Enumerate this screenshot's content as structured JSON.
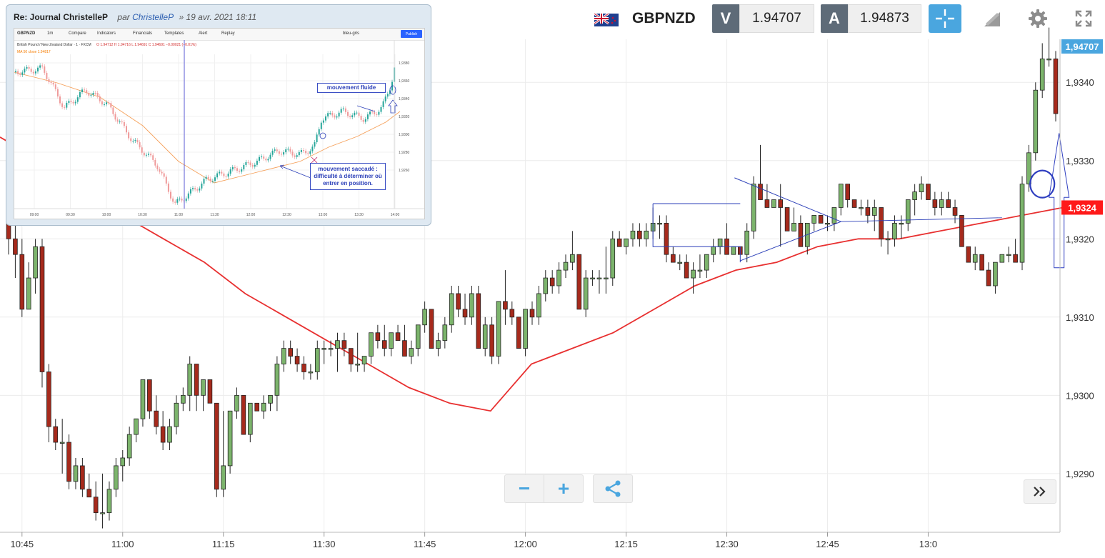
{
  "header": {
    "symbol": "GBPNZD",
    "sell_label": "V",
    "sell_price": "1.94707",
    "buy_label": "A",
    "buy_price": "1.94873"
  },
  "toolbar": {
    "icons": [
      "crosshair-icon",
      "drawing-tool-icon",
      "gear-icon",
      "fullscreen-icon"
    ]
  },
  "zoom": {
    "minus": "−",
    "plus": "+"
  },
  "colors": {
    "up": "#7cb46c",
    "down": "#a62a1c",
    "ma": "#e83030",
    "accent": "#4aa6df",
    "annotation": "#2b3fb8",
    "last_price": "#ff1a1a"
  },
  "chart_data": {
    "type": "candlestick",
    "title": "",
    "xlabel": "",
    "ylabel": "",
    "x_ticks": [
      "10:45",
      "11:00",
      "11:15",
      "11:30",
      "11:45",
      "12:00",
      "12:15",
      "12:30",
      "12:45",
      "13:0"
    ],
    "y_ticks": [
      "1,9290",
      "1,9300",
      "1,9310",
      "1,9320",
      "1,9330",
      "1,9340"
    ],
    "ylim": [
      1.92825,
      1.93455
    ],
    "price_labels": {
      "top": "1,94707",
      "last": "1,9324"
    },
    "grid": true,
    "series": [
      {
        "values": [
          [
            1.9322,
            1.9325,
            1.9318,
            1.932
          ],
          [
            1.932,
            1.9322,
            1.9315,
            1.9318
          ],
          [
            1.9318,
            1.932,
            1.931,
            1.9311
          ],
          [
            1.9311,
            1.9317,
            1.9311,
            1.9315
          ],
          [
            1.9315,
            1.932,
            1.9313,
            1.9319
          ],
          [
            1.9319,
            1.932,
            1.9301,
            1.9303
          ],
          [
            1.9303,
            1.9304,
            1.9294,
            1.9296
          ],
          [
            1.9296,
            1.9297,
            1.9293,
            1.9294
          ],
          [
            1.9294,
            1.9297,
            1.929,
            1.9294
          ],
          [
            1.9294,
            1.9295,
            1.9288,
            1.9289
          ],
          [
            1.9289,
            1.9292,
            1.9288,
            1.9291
          ],
          [
            1.9291,
            1.9292,
            1.9287,
            1.9288
          ],
          [
            1.9288,
            1.929,
            1.9287,
            1.9287
          ],
          [
            1.9287,
            1.9289,
            1.9284,
            1.9285
          ],
          [
            1.9285,
            1.929,
            1.9283,
            1.9285
          ],
          [
            1.9285,
            1.9289,
            1.9284,
            1.9288
          ],
          [
            1.9288,
            1.9292,
            1.9287,
            1.9291
          ],
          [
            1.9291,
            1.9293,
            1.9289,
            1.9292
          ],
          [
            1.9292,
            1.9296,
            1.9291,
            1.9295
          ],
          [
            1.9295,
            1.9297,
            1.9294,
            1.9297
          ],
          [
            1.9297,
            1.9302,
            1.9296,
            1.9302
          ],
          [
            1.9302,
            1.9302,
            1.9297,
            1.9298
          ],
          [
            1.9298,
            1.93,
            1.9295,
            1.9296
          ],
          [
            1.9296,
            1.9298,
            1.9293,
            1.9294
          ],
          [
            1.9294,
            1.9297,
            1.9293,
            1.9296
          ],
          [
            1.9296,
            1.93,
            1.9295,
            1.9299
          ],
          [
            1.9299,
            1.9301,
            1.9298,
            1.93
          ],
          [
            1.93,
            1.9305,
            1.9298,
            1.9304
          ],
          [
            1.9304,
            1.9304,
            1.9298,
            1.93
          ],
          [
            1.93,
            1.9302,
            1.9298,
            1.9302
          ],
          [
            1.9302,
            1.9302,
            1.9299,
            1.9299
          ],
          [
            1.9299,
            1.9299,
            1.9287,
            1.9288
          ],
          [
            1.9288,
            1.9298,
            1.9287,
            1.9291
          ],
          [
            1.9291,
            1.9298,
            1.929,
            1.9298
          ],
          [
            1.9298,
            1.9301,
            1.9297,
            1.93
          ],
          [
            1.93,
            1.93,
            1.9295,
            1.9295
          ],
          [
            1.9295,
            1.9299,
            1.9294,
            1.9299
          ],
          [
            1.9299,
            1.9299,
            1.9298,
            1.9298
          ],
          [
            1.9298,
            1.93,
            1.9297,
            1.9299
          ],
          [
            1.9299,
            1.93,
            1.9298,
            1.93
          ],
          [
            1.93,
            1.9305,
            1.9298,
            1.9304
          ],
          [
            1.9304,
            1.9307,
            1.9303,
            1.9306
          ],
          [
            1.9306,
            1.9307,
            1.9304,
            1.9305
          ],
          [
            1.9305,
            1.9306,
            1.9303,
            1.9304
          ],
          [
            1.9304,
            1.9305,
            1.9302,
            1.9303
          ],
          [
            1.9303,
            1.9304,
            1.9302,
            1.9303
          ],
          [
            1.9303,
            1.9307,
            1.9302,
            1.9306
          ],
          [
            1.9306,
            1.9307,
            1.9304,
            1.9306
          ],
          [
            1.9306,
            1.9307,
            1.9305,
            1.9306
          ],
          [
            1.9306,
            1.9308,
            1.9303,
            1.9307
          ],
          [
            1.9307,
            1.9308,
            1.9305,
            1.9306
          ],
          [
            1.9306,
            1.9306,
            1.9303,
            1.9304
          ],
          [
            1.9304,
            1.9308,
            1.9303,
            1.9304
          ],
          [
            1.9304,
            1.9305,
            1.9303,
            1.9305
          ],
          [
            1.9305,
            1.9308,
            1.9304,
            1.9308
          ],
          [
            1.9308,
            1.9309,
            1.9306,
            1.9307
          ],
          [
            1.9307,
            1.9309,
            1.9305,
            1.9306
          ],
          [
            1.9306,
            1.9308,
            1.9305,
            1.9308
          ],
          [
            1.9308,
            1.9309,
            1.9307,
            1.9307
          ],
          [
            1.9307,
            1.9309,
            1.9305,
            1.9305
          ],
          [
            1.9305,
            1.9307,
            1.9304,
            1.9306
          ],
          [
            1.9306,
            1.9308,
            1.9305,
            1.9309
          ],
          [
            1.9309,
            1.9312,
            1.9308,
            1.9311
          ],
          [
            1.9311,
            1.9311,
            1.9306,
            1.9306
          ],
          [
            1.9306,
            1.9308,
            1.9305,
            1.9307
          ],
          [
            1.9307,
            1.931,
            1.9306,
            1.9309
          ],
          [
            1.9309,
            1.9314,
            1.9308,
            1.9313
          ],
          [
            1.9313,
            1.9314,
            1.931,
            1.9311
          ],
          [
            1.9311,
            1.9313,
            1.9309,
            1.931
          ],
          [
            1.931,
            1.9314,
            1.9309,
            1.9313
          ],
          [
            1.9313,
            1.9314,
            1.9306,
            1.9306
          ],
          [
            1.9306,
            1.931,
            1.9305,
            1.9309
          ],
          [
            1.9309,
            1.931,
            1.9304,
            1.9305
          ],
          [
            1.9305,
            1.9312,
            1.9304,
            1.9312
          ],
          [
            1.9312,
            1.9316,
            1.9309,
            1.9311
          ],
          [
            1.9311,
            1.9312,
            1.9309,
            1.931
          ],
          [
            1.931,
            1.931,
            1.9306,
            1.9306
          ],
          [
            1.9306,
            1.9311,
            1.9305,
            1.9311
          ],
          [
            1.9311,
            1.9312,
            1.9309,
            1.931
          ],
          [
            1.931,
            1.9314,
            1.9309,
            1.9313
          ],
          [
            1.9313,
            1.9316,
            1.9312,
            1.9315
          ],
          [
            1.9315,
            1.9316,
            1.9313,
            1.9314
          ],
          [
            1.9314,
            1.9317,
            1.9313,
            1.9316
          ],
          [
            1.9316,
            1.9318,
            1.9315,
            1.9317
          ],
          [
            1.9317,
            1.9321,
            1.9316,
            1.9318
          ],
          [
            1.9318,
            1.9318,
            1.9311,
            1.9311
          ],
          [
            1.9311,
            1.9316,
            1.931,
            1.9315
          ],
          [
            1.9315,
            1.9316,
            1.9314,
            1.9315
          ],
          [
            1.9315,
            1.9316,
            1.9313,
            1.9315
          ],
          [
            1.9315,
            1.9319,
            1.9313,
            1.9315
          ],
          [
            1.9315,
            1.9321,
            1.9314,
            1.932
          ],
          [
            1.932,
            1.9321,
            1.9319,
            1.9319
          ],
          [
            1.9319,
            1.932,
            1.9318,
            1.932
          ],
          [
            1.932,
            1.9322,
            1.9319,
            1.9321
          ],
          [
            1.9321,
            1.9322,
            1.9319,
            1.932
          ],
          [
            1.932,
            1.9322,
            1.9319,
            1.9321
          ],
          [
            1.9321,
            1.9324,
            1.932,
            1.9322
          ],
          [
            1.9322,
            1.9323,
            1.932,
            1.9322
          ],
          [
            1.9322,
            1.9323,
            1.9317,
            1.9318
          ],
          [
            1.9318,
            1.9319,
            1.9317,
            1.9317
          ],
          [
            1.9317,
            1.9318,
            1.9316,
            1.9317
          ],
          [
            1.9317,
            1.9318,
            1.9315,
            1.9315
          ],
          [
            1.9315,
            1.9317,
            1.9313,
            1.9316
          ],
          [
            1.9316,
            1.9318,
            1.9315,
            1.9316
          ],
          [
            1.9316,
            1.9318,
            1.9315,
            1.9318
          ],
          [
            1.9318,
            1.932,
            1.9317,
            1.9319
          ],
          [
            1.9319,
            1.932,
            1.9318,
            1.932
          ],
          [
            1.932,
            1.9322,
            1.9318,
            1.9318
          ],
          [
            1.9318,
            1.9319,
            1.9318,
            1.9319
          ],
          [
            1.9319,
            1.9319,
            1.9318,
            1.9318
          ],
          [
            1.9318,
            1.9322,
            1.9317,
            1.9321
          ],
          [
            1.9321,
            1.9328,
            1.932,
            1.9327
          ],
          [
            1.9327,
            1.9332,
            1.9325,
            1.9325
          ],
          [
            1.9325,
            1.9327,
            1.9324,
            1.9324
          ],
          [
            1.9324,
            1.9325,
            1.9324,
            1.9325
          ],
          [
            1.9325,
            1.9327,
            1.9319,
            1.9324
          ],
          [
            1.9324,
            1.9324,
            1.9321,
            1.9321
          ],
          [
            1.9321,
            1.9324,
            1.9321,
            1.9322
          ],
          [
            1.9322,
            1.9323,
            1.9319,
            1.9319
          ],
          [
            1.9319,
            1.9322,
            1.9318,
            1.9322
          ],
          [
            1.9322,
            1.9323,
            1.9321,
            1.9323
          ],
          [
            1.9323,
            1.9323,
            1.9322,
            1.9322
          ],
          [
            1.9322,
            1.9323,
            1.9321,
            1.9322
          ],
          [
            1.9322,
            1.9324,
            1.9321,
            1.9324
          ],
          [
            1.9324,
            1.9327,
            1.9323,
            1.9327
          ],
          [
            1.9327,
            1.9327,
            1.9324,
            1.9325
          ],
          [
            1.9325,
            1.9325,
            1.9324,
            1.9324
          ],
          [
            1.9324,
            1.9325,
            1.9323,
            1.9324
          ],
          [
            1.9324,
            1.9325,
            1.9322,
            1.9323
          ],
          [
            1.9323,
            1.9325,
            1.9321,
            1.9324
          ],
          [
            1.9324,
            1.9324,
            1.9319,
            1.932
          ],
          [
            1.932,
            1.9321,
            1.9318,
            1.932
          ],
          [
            1.932,
            1.9323,
            1.9319,
            1.9322
          ],
          [
            1.9322,
            1.9323,
            1.932,
            1.9322
          ],
          [
            1.9322,
            1.9325,
            1.9321,
            1.9325
          ],
          [
            1.9325,
            1.9327,
            1.9323,
            1.9326
          ],
          [
            1.9326,
            1.9328,
            1.9325,
            1.9327
          ],
          [
            1.9327,
            1.9327,
            1.9325,
            1.9325
          ],
          [
            1.9325,
            1.9326,
            1.9323,
            1.9324
          ],
          [
            1.9324,
            1.9326,
            1.9323,
            1.9325
          ],
          [
            1.9325,
            1.9326,
            1.9324,
            1.9324
          ],
          [
            1.9324,
            1.9325,
            1.9322,
            1.9323
          ],
          [
            1.9323,
            1.9323,
            1.9319,
            1.9319
          ],
          [
            1.9319,
            1.9319,
            1.9317,
            1.9317
          ],
          [
            1.9317,
            1.9319,
            1.9316,
            1.9318
          ],
          [
            1.9318,
            1.9318,
            1.9316,
            1.9316
          ],
          [
            1.9316,
            1.9317,
            1.9314,
            1.9314
          ],
          [
            1.9314,
            1.9317,
            1.9313,
            1.9317
          ],
          [
            1.9317,
            1.9318,
            1.9317,
            1.9318
          ],
          [
            1.9318,
            1.9319,
            1.9317,
            1.9318
          ],
          [
            1.9318,
            1.932,
            1.9317,
            1.9317
          ],
          [
            1.9317,
            1.9328,
            1.9316,
            1.9327
          ],
          [
            1.9327,
            1.9332,
            1.9326,
            1.9331
          ],
          [
            1.9331,
            1.934,
            1.933,
            1.9339
          ],
          [
            1.9339,
            1.9345,
            1.9338,
            1.9343
          ],
          [
            1.9343,
            1.9347,
            1.9342,
            1.9343
          ],
          [
            1.9343,
            1.9344,
            1.9335,
            1.9336
          ]
        ]
      },
      {
        "name": "",
        "type": "line",
        "values": [
          1.9333,
          1.933,
          1.9326,
          1.9323,
          1.932,
          1.9317,
          1.9313,
          1.931,
          1.9307,
          1.9304,
          1.9301,
          1.9299,
          1.9298,
          1.9304,
          1.9306,
          1.9308,
          1.9311,
          1.9314,
          1.9316,
          1.9317,
          1.9319,
          1.932,
          1.932,
          1.9321,
          1.9322,
          1.9323,
          1.9324
        ]
      }
    ]
  },
  "annotations": {
    "triangle_apex_time": "12:47",
    "rectangle": {
      "time_start": "12:19",
      "time_end": "12:32",
      "price_top": 1.93245,
      "price_bottom": 1.9319
    }
  },
  "inset": {
    "title": "Re: Journal ChristelleP",
    "by": "par",
    "author": "ChristelleP",
    "date": "» 19 avr. 2021 18:11",
    "toolbar": {
      "symbol": "GBPNZD",
      "interval": "1m",
      "compare": "Compare",
      "indicators": "Indicators",
      "financials": "Financials",
      "templates": "Templates",
      "alert": "Alert",
      "replay": "Replay",
      "layout": "bleu-gris",
      "publish": "Publish"
    },
    "legend": "British Pound / New Zealand Dollar · 1 · FXCM",
    "legend_values": "O 1.94712  H 1.94716  L 1.94691  C 1.94691  −0.00021 (−0.01%)",
    "ma_legend": "MA 50 close  1.94817",
    "x_ticks": [
      "09:00",
      "09:30",
      "10:00",
      "10:30",
      "11:00",
      "11:30",
      "12:00",
      "12:30",
      "13:00",
      "13:30",
      "14:00"
    ],
    "y_ticks": [
      "1,9380",
      "1,9360",
      "1,9340",
      "1,9320",
      "1,9300",
      "1,9280",
      "1,9260"
    ],
    "notes": {
      "fluid": "mouvement fluide",
      "choppy": "mouvement saccadé : difficulté à déterminer où entrer en position."
    }
  }
}
